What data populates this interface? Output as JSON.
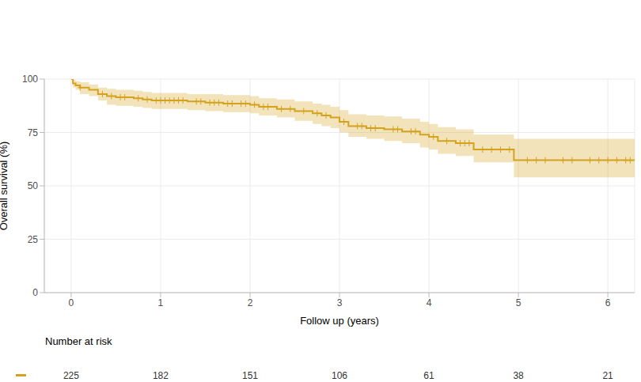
{
  "chart_data": {
    "type": "line",
    "xlabel": "Follow up (years)",
    "ylabel": "Overall survival (%)",
    "color": "#d4a21d",
    "line_style": "step",
    "marker": "plus",
    "grid": true,
    "xlim": [
      -0.3,
      6.3
    ],
    "xticks": [
      0,
      1,
      2,
      3,
      4,
      5,
      6
    ],
    "ylim": [
      0,
      100
    ],
    "yticks": [
      0,
      25,
      50,
      75,
      100
    ],
    "x": [
      0,
      0.02,
      0.05,
      0.1,
      0.2,
      0.3,
      0.4,
      0.5,
      0.7,
      0.8,
      0.9,
      1.3,
      1.5,
      1.7,
      2.0,
      2.1,
      2.3,
      2.5,
      2.7,
      2.8,
      2.9,
      3.0,
      3.1,
      3.3,
      3.5,
      3.7,
      3.9,
      4.0,
      4.1,
      4.3,
      4.5,
      4.95,
      6.3
    ],
    "values": [
      100,
      98,
      97,
      96,
      95,
      93,
      92,
      91.5,
      91,
      90.5,
      90,
      89.5,
      89,
      88.5,
      88,
      87,
      86,
      85,
      84,
      83,
      82,
      80,
      78,
      77,
      76.5,
      75.5,
      74,
      73,
      71,
      70,
      67,
      62,
      62
    ],
    "ci_lower": [
      100,
      96,
      95,
      93,
      92,
      90,
      88,
      87.5,
      87,
      86.5,
      86,
      85.5,
      85,
      84.5,
      84,
      83,
      82,
      80.5,
      79,
      78,
      77,
      75,
      73,
      72,
      71,
      70,
      68,
      67,
      65,
      64,
      61,
      54,
      54
    ],
    "ci_upper": [
      100,
      99.5,
      99,
      98.5,
      97.5,
      96,
      95.5,
      95,
      94.5,
      94,
      93.5,
      93,
      93,
      92.5,
      92,
      91,
      90.5,
      89.5,
      88.5,
      88,
      87,
      85.5,
      83.5,
      83,
      82.5,
      81.5,
      80,
      79,
      77.5,
      76.5,
      74,
      72,
      72
    ],
    "censored": [
      0.1,
      0.35,
      0.45,
      0.55,
      0.6,
      0.75,
      0.85,
      0.95,
      1.0,
      1.05,
      1.1,
      1.15,
      1.2,
      1.25,
      1.4,
      1.45,
      1.55,
      1.6,
      1.65,
      1.75,
      1.8,
      1.9,
      1.95,
      2.05,
      2.15,
      2.2,
      2.35,
      2.45,
      2.6,
      2.75,
      2.85,
      3.05,
      3.2,
      3.25,
      3.35,
      3.4,
      3.6,
      3.65,
      3.8,
      3.85,
      4.05,
      4.2,
      4.35,
      4.4,
      4.45,
      4.6,
      4.7,
      4.8,
      4.9,
      5.1,
      5.2,
      5.3,
      5.5,
      5.6,
      5.8,
      5.9,
      6.0,
      6.1,
      6.2,
      6.25
    ],
    "risk_table": {
      "title": "Number at risk",
      "x": [
        0,
        1,
        2,
        3,
        4,
        5,
        6
      ],
      "values": [
        225,
        182,
        151,
        106,
        61,
        38,
        21
      ]
    }
  }
}
